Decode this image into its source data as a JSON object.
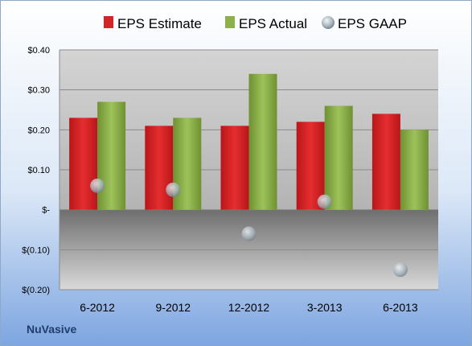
{
  "chart_data": {
    "type": "bar",
    "categories": [
      "6-2012",
      "9-2012",
      "12-2012",
      "3-2013",
      "6-2013"
    ],
    "series": [
      {
        "name": "EPS Estimate",
        "kind": "bar",
        "color": "#d42426",
        "values": [
          0.23,
          0.21,
          0.21,
          0.22,
          0.24
        ]
      },
      {
        "name": "EPS Actual",
        "kind": "bar",
        "color": "#8eb04a",
        "values": [
          0.27,
          0.23,
          0.34,
          0.26,
          0.2
        ]
      },
      {
        "name": "EPS GAAP",
        "kind": "marker",
        "color": "#a9b6bf",
        "values": [
          0.06,
          0.05,
          -0.06,
          0.02,
          -0.15
        ]
      }
    ],
    "ylim": [
      -0.2,
      0.4
    ],
    "yticks": [
      0.4,
      0.3,
      0.2,
      0.1,
      0,
      -0.1,
      -0.2
    ],
    "ytick_labels": [
      "$0.40",
      "$0.30",
      "$0.20",
      "$0.10",
      "$-",
      "$(0.10)",
      "$(0.20)"
    ],
    "grid": true,
    "legend": "top"
  },
  "footer": {
    "brand": "NuVasive"
  }
}
